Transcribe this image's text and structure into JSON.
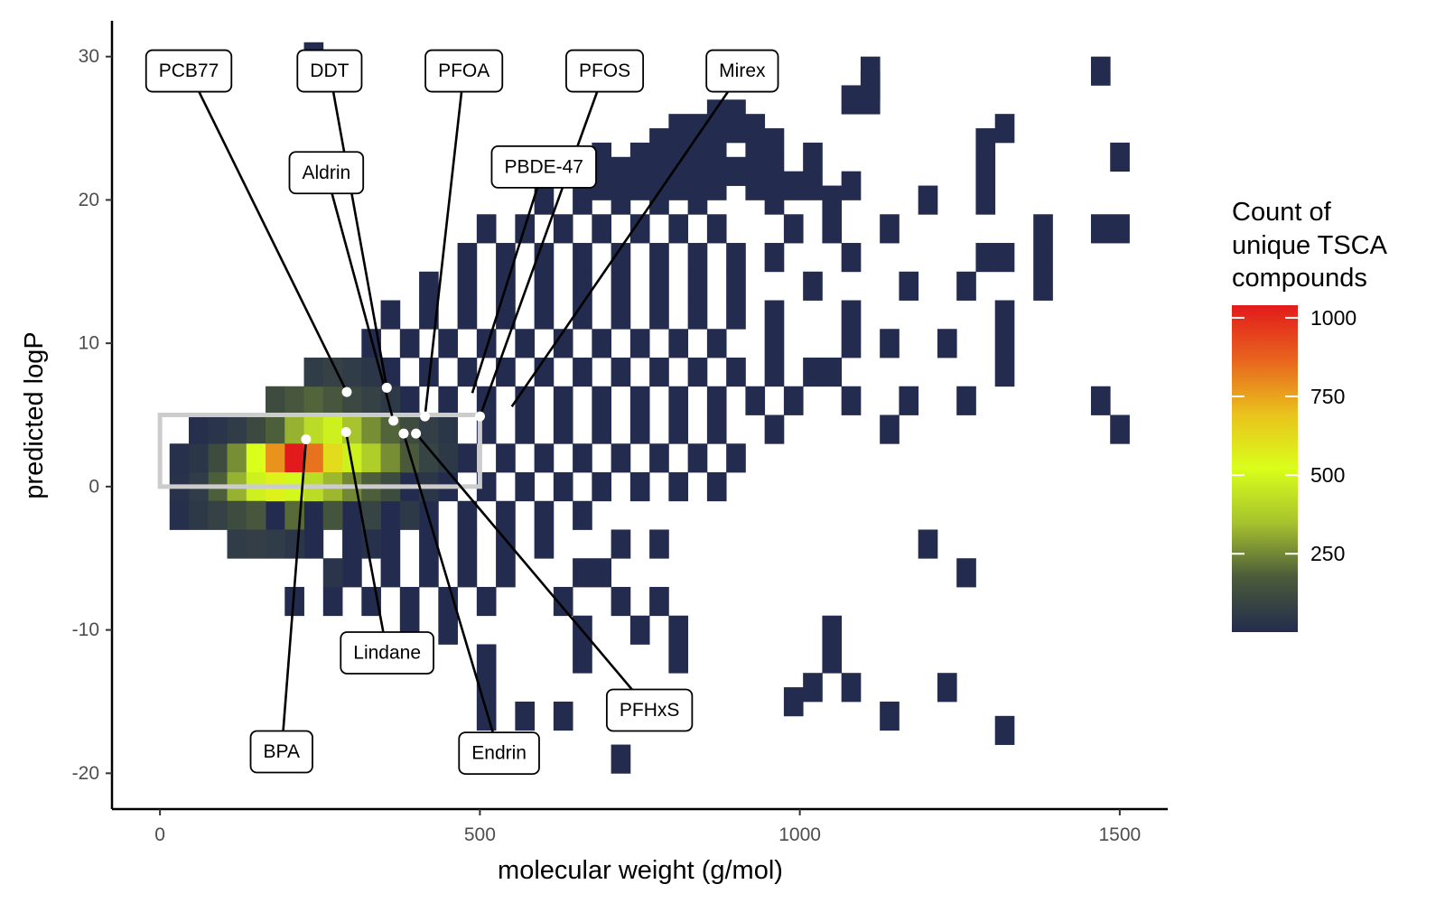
{
  "chart_data": {
    "type": "heatmap",
    "title": "",
    "xlabel": "molecular weight (g/mol)",
    "ylabel": "predicted logP",
    "xlim": [
      -75,
      1575
    ],
    "ylim": [
      -22.5,
      32.5
    ],
    "x_ticks": [
      0,
      500,
      1000,
      1500
    ],
    "x_tick_labels": [
      "0",
      "500",
      "1000",
      "1500"
    ],
    "y_ticks": [
      -20,
      -10,
      0,
      10,
      20,
      30
    ],
    "y_tick_labels": [
      "-20",
      "-10",
      "0",
      "10",
      "20",
      "30"
    ],
    "grid": false,
    "bin_width": {
      "x": 30,
      "y": 2
    },
    "legend": {
      "title_lines": [
        "Count of",
        "unique TSCA",
        "compounds"
      ],
      "ticks": [
        250,
        500,
        750,
        1000
      ],
      "tick_labels": [
        "250",
        "500",
        "750",
        "1000"
      ],
      "range": [
        1,
        1040
      ],
      "placement": "right"
    },
    "colors": {
      "scale": [
        "#232c4e",
        "#4a5a3a",
        "#a6c22e",
        "#d9ff1a",
        "#eac21d",
        "#e8641e",
        "#e31a1c"
      ],
      "highlight_box": "#cccccc",
      "point": "#ffffff"
    },
    "highlight_region": {
      "x": [
        0,
        500
      ],
      "y": [
        0,
        5
      ]
    },
    "bins": [
      [
        240,
        30,
        1
      ],
      [
        1110,
        29,
        1
      ],
      [
        1470,
        29,
        1
      ],
      [
        1110,
        28,
        1
      ],
      [
        1080,
        27,
        1
      ],
      [
        1110,
        27,
        1
      ],
      [
        870,
        26,
        1
      ],
      [
        900,
        26,
        1
      ],
      [
        900,
        25,
        1
      ],
      [
        1320,
        25,
        1
      ],
      [
        840,
        25,
        1
      ],
      [
        810,
        25,
        1
      ],
      [
        870,
        25,
        1
      ],
      [
        930,
        25,
        1
      ],
      [
        780,
        24,
        1
      ],
      [
        840,
        24,
        1
      ],
      [
        1290,
        24,
        1
      ],
      [
        960,
        24,
        1
      ],
      [
        690,
        23,
        1
      ],
      [
        750,
        23,
        1
      ],
      [
        810,
        23,
        1
      ],
      [
        870,
        23,
        1
      ],
      [
        1020,
        23,
        1
      ],
      [
        930,
        23,
        1
      ],
      [
        1500,
        23,
        1
      ],
      [
        720,
        22,
        1
      ],
      [
        780,
        22,
        1
      ],
      [
        900,
        22,
        1
      ],
      [
        960,
        22,
        1
      ],
      [
        1290,
        22,
        1
      ],
      [
        660,
        22,
        1
      ],
      [
        840,
        22,
        1
      ],
      [
        690,
        21,
        1
      ],
      [
        750,
        21,
        1
      ],
      [
        810,
        21,
        1
      ],
      [
        870,
        21,
        1
      ],
      [
        930,
        21,
        1
      ],
      [
        1020,
        21,
        1
      ],
      [
        1080,
        21,
        1
      ],
      [
        990,
        21,
        1
      ],
      [
        660,
        20,
        1
      ],
      [
        720,
        20,
        1
      ],
      [
        780,
        20,
        1
      ],
      [
        840,
        20,
        1
      ],
      [
        960,
        20,
        1
      ],
      [
        1050,
        20,
        1
      ],
      [
        1200,
        20,
        1
      ],
      [
        1290,
        20,
        1
      ],
      [
        600,
        20,
        1
      ],
      [
        510,
        18,
        1
      ],
      [
        570,
        18,
        1
      ],
      [
        630,
        18,
        1
      ],
      [
        690,
        18,
        1
      ],
      [
        750,
        18,
        1
      ],
      [
        810,
        18,
        1
      ],
      [
        870,
        18,
        1
      ],
      [
        990,
        18,
        1
      ],
      [
        1050,
        18,
        1
      ],
      [
        1140,
        18,
        1
      ],
      [
        1380,
        18,
        1
      ],
      [
        1470,
        18,
        1
      ],
      [
        1500,
        18,
        1
      ],
      [
        480,
        16,
        1
      ],
      [
        540,
        16,
        1
      ],
      [
        600,
        16,
        1
      ],
      [
        660,
        16,
        1
      ],
      [
        720,
        16,
        1
      ],
      [
        780,
        16,
        1
      ],
      [
        840,
        16,
        1
      ],
      [
        900,
        16,
        1
      ],
      [
        960,
        16,
        1
      ],
      [
        1080,
        16,
        1
      ],
      [
        1290,
        16,
        1
      ],
      [
        1320,
        16,
        1
      ],
      [
        1380,
        16,
        1
      ],
      [
        420,
        14,
        1
      ],
      [
        480,
        14,
        1
      ],
      [
        540,
        14,
        1
      ],
      [
        600,
        14,
        1
      ],
      [
        660,
        14,
        1
      ],
      [
        720,
        14,
        1
      ],
      [
        780,
        14,
        1
      ],
      [
        840,
        14,
        1
      ],
      [
        900,
        14,
        1
      ],
      [
        1020,
        14,
        1
      ],
      [
        1170,
        14,
        1
      ],
      [
        1260,
        14,
        1
      ],
      [
        1380,
        14,
        1
      ],
      [
        360,
        12,
        1
      ],
      [
        420,
        12,
        1
      ],
      [
        480,
        12,
        1
      ],
      [
        540,
        12,
        1
      ],
      [
        600,
        12,
        1
      ],
      [
        660,
        12,
        1
      ],
      [
        720,
        12,
        1
      ],
      [
        780,
        12,
        1
      ],
      [
        840,
        12,
        1
      ],
      [
        900,
        12,
        1
      ],
      [
        960,
        12,
        1
      ],
      [
        1080,
        12,
        1
      ],
      [
        1320,
        12,
        1
      ],
      [
        330,
        10,
        1
      ],
      [
        390,
        10,
        1
      ],
      [
        450,
        10,
        1
      ],
      [
        510,
        10,
        1
      ],
      [
        570,
        10,
        1
      ],
      [
        630,
        10,
        1
      ],
      [
        690,
        10,
        1
      ],
      [
        750,
        10,
        1
      ],
      [
        810,
        10,
        1
      ],
      [
        870,
        10,
        1
      ],
      [
        960,
        10,
        1
      ],
      [
        1080,
        10,
        1
      ],
      [
        1140,
        10,
        1
      ],
      [
        1230,
        10,
        1
      ],
      [
        1320,
        10,
        1
      ],
      [
        300,
        8,
        1
      ],
      [
        360,
        8,
        1
      ],
      [
        420,
        8,
        1
      ],
      [
        480,
        8,
        1
      ],
      [
        540,
        8,
        1
      ],
      [
        600,
        8,
        1
      ],
      [
        660,
        8,
        1
      ],
      [
        720,
        8,
        1
      ],
      [
        780,
        8,
        1
      ],
      [
        840,
        8,
        1
      ],
      [
        900,
        8,
        1
      ],
      [
        960,
        8,
        1
      ],
      [
        1020,
        8,
        1
      ],
      [
        1050,
        8,
        1
      ],
      [
        1320,
        8,
        1
      ],
      [
        270,
        6,
        1
      ],
      [
        330,
        6,
        1
      ],
      [
        390,
        6,
        1
      ],
      [
        450,
        6,
        1
      ],
      [
        510,
        6,
        1
      ],
      [
        570,
        6,
        1
      ],
      [
        630,
        6,
        1
      ],
      [
        690,
        6,
        1
      ],
      [
        750,
        6,
        1
      ],
      [
        810,
        6,
        1
      ],
      [
        870,
        6,
        1
      ],
      [
        930,
        6,
        1
      ],
      [
        990,
        6,
        1
      ],
      [
        1080,
        6,
        1
      ],
      [
        1170,
        6,
        1
      ],
      [
        1470,
        6,
        1
      ],
      [
        1260,
        6,
        1
      ],
      [
        210,
        4,
        1
      ],
      [
        270,
        4,
        1
      ],
      [
        330,
        4,
        1
      ],
      [
        390,
        4,
        1
      ],
      [
        450,
        4,
        1
      ],
      [
        510,
        4,
        1
      ],
      [
        570,
        4,
        1
      ],
      [
        630,
        4,
        1
      ],
      [
        690,
        4,
        1
      ],
      [
        750,
        4,
        1
      ],
      [
        810,
        4,
        1
      ],
      [
        870,
        4,
        1
      ],
      [
        960,
        4,
        1
      ],
      [
        1500,
        4,
        1
      ],
      [
        1140,
        4,
        1
      ],
      [
        180,
        2,
        1
      ],
      [
        240,
        2,
        1
      ],
      [
        300,
        2,
        1
      ],
      [
        360,
        2,
        1
      ],
      [
        420,
        2,
        1
      ],
      [
        480,
        2,
        1
      ],
      [
        540,
        2,
        1
      ],
      [
        600,
        2,
        1
      ],
      [
        660,
        2,
        1
      ],
      [
        720,
        2,
        1
      ],
      [
        780,
        2,
        1
      ],
      [
        840,
        2,
        1
      ],
      [
        900,
        2,
        1
      ],
      [
        150,
        0,
        1
      ],
      [
        210,
        0,
        1
      ],
      [
        270,
        0,
        1
      ],
      [
        330,
        0,
        1
      ],
      [
        390,
        0,
        1
      ],
      [
        450,
        0,
        1
      ],
      [
        510,
        0,
        1
      ],
      [
        570,
        0,
        1
      ],
      [
        630,
        0,
        1
      ],
      [
        690,
        0,
        1
      ],
      [
        750,
        0,
        1
      ],
      [
        810,
        0,
        1
      ],
      [
        870,
        0,
        1
      ],
      [
        180,
        -2,
        1
      ],
      [
        240,
        -2,
        1
      ],
      [
        300,
        -2,
        1
      ],
      [
        360,
        -2,
        1
      ],
      [
        420,
        -2,
        1
      ],
      [
        480,
        -2,
        1
      ],
      [
        540,
        -2,
        1
      ],
      [
        600,
        -2,
        1
      ],
      [
        660,
        -2,
        1
      ],
      [
        240,
        -4,
        1
      ],
      [
        300,
        -4,
        1
      ],
      [
        360,
        -4,
        1
      ],
      [
        420,
        -4,
        1
      ],
      [
        480,
        -4,
        1
      ],
      [
        540,
        -4,
        1
      ],
      [
        600,
        -4,
        1
      ],
      [
        720,
        -4,
        1
      ],
      [
        780,
        -4,
        1
      ],
      [
        1200,
        -4,
        1
      ],
      [
        300,
        -6,
        1
      ],
      [
        360,
        -6,
        1
      ],
      [
        420,
        -6,
        1
      ],
      [
        480,
        -6,
        1
      ],
      [
        540,
        -6,
        1
      ],
      [
        660,
        -6,
        1
      ],
      [
        690,
        -6,
        1
      ],
      [
        1260,
        -6,
        1
      ],
      [
        210,
        -8,
        1
      ],
      [
        270,
        -8,
        1
      ],
      [
        330,
        -8,
        1
      ],
      [
        390,
        -8,
        1
      ],
      [
        450,
        -8,
        1
      ],
      [
        510,
        -8,
        1
      ],
      [
        630,
        -8,
        1
      ],
      [
        720,
        -8,
        1
      ],
      [
        780,
        -8,
        1
      ],
      [
        390,
        -10,
        1
      ],
      [
        450,
        -10,
        1
      ],
      [
        660,
        -10,
        1
      ],
      [
        750,
        -10,
        1
      ],
      [
        810,
        -10,
        1
      ],
      [
        1050,
        -10,
        1
      ],
      [
        510,
        -12,
        1
      ],
      [
        660,
        -12,
        1
      ],
      [
        810,
        -12,
        1
      ],
      [
        1050,
        -12,
        1
      ],
      [
        1020,
        -14,
        1
      ],
      [
        1080,
        -14,
        1
      ],
      [
        1230,
        -14,
        1
      ],
      [
        510,
        -14,
        1
      ],
      [
        990,
        -15,
        1
      ],
      [
        510,
        -16,
        1
      ],
      [
        570,
        -16,
        1
      ],
      [
        630,
        -16,
        1
      ],
      [
        1140,
        -16,
        1
      ],
      [
        1320,
        -17,
        1
      ],
      [
        720,
        -19,
        1
      ],
      [
        120,
        4,
        60
      ],
      [
        150,
        4,
        110
      ],
      [
        180,
        4,
        180
      ],
      [
        210,
        4,
        320
      ],
      [
        240,
        4,
        420
      ],
      [
        270,
        4,
        480
      ],
      [
        300,
        4,
        350
      ],
      [
        330,
        4,
        260
      ],
      [
        360,
        4,
        190
      ],
      [
        390,
        4,
        120
      ],
      [
        420,
        4,
        70
      ],
      [
        450,
        4,
        40
      ],
      [
        90,
        2,
        120
      ],
      [
        120,
        2,
        260
      ],
      [
        150,
        2,
        520
      ],
      [
        180,
        2,
        780
      ],
      [
        210,
        2,
        1040
      ],
      [
        240,
        2,
        840
      ],
      [
        270,
        2,
        620
      ],
      [
        300,
        2,
        480
      ],
      [
        330,
        2,
        380
      ],
      [
        360,
        2,
        260
      ],
      [
        390,
        2,
        170
      ],
      [
        420,
        2,
        90
      ],
      [
        450,
        2,
        50
      ],
      [
        90,
        0,
        180
      ],
      [
        120,
        0,
        320
      ],
      [
        150,
        0,
        480
      ],
      [
        180,
        0,
        560
      ],
      [
        210,
        0,
        500
      ],
      [
        240,
        0,
        420
      ],
      [
        270,
        0,
        330
      ],
      [
        300,
        0,
        250
      ],
      [
        330,
        0,
        180
      ],
      [
        360,
        0,
        120
      ],
      [
        420,
        0,
        40
      ],
      [
        60,
        0,
        60
      ],
      [
        60,
        2,
        40
      ],
      [
        120,
        -2,
        120
      ],
      [
        150,
        -2,
        160
      ],
      [
        210,
        -2,
        200
      ],
      [
        270,
        -2,
        150
      ],
      [
        330,
        -2,
        90
      ],
      [
        390,
        -2,
        50
      ],
      [
        180,
        6,
        120
      ],
      [
        210,
        6,
        160
      ],
      [
        240,
        6,
        190
      ],
      [
        270,
        6,
        160
      ],
      [
        300,
        6,
        110
      ],
      [
        330,
        6,
        80
      ],
      [
        360,
        6,
        50
      ],
      [
        240,
        8,
        60
      ],
      [
        270,
        8,
        80
      ],
      [
        300,
        8,
        60
      ],
      [
        330,
        8,
        40
      ],
      [
        30,
        0,
        25
      ],
      [
        30,
        2,
        20
      ],
      [
        60,
        4,
        15
      ],
      [
        90,
        4,
        30
      ],
      [
        30,
        -2,
        15
      ],
      [
        60,
        -2,
        50
      ],
      [
        90,
        -2,
        80
      ],
      [
        120,
        -4,
        60
      ],
      [
        150,
        -4,
        70
      ],
      [
        180,
        -4,
        60
      ],
      [
        210,
        -4,
        40
      ],
      [
        270,
        -6,
        30
      ],
      [
        330,
        -4,
        20
      ]
    ],
    "points": [
      {
        "label": "PCB77",
        "x": 291.98,
        "y": 6.6,
        "label_x": 45,
        "label_y": 29
      },
      {
        "label": "DDT",
        "x": 354.49,
        "y": 6.9,
        "label_x": 265,
        "label_y": 29
      },
      {
        "label": "PFOA",
        "x": 414.07,
        "y": 4.9,
        "label_x": 475,
        "label_y": 29
      },
      {
        "label": "PFOS",
        "x": 500.13,
        "y": 4.9,
        "label_x": 695,
        "label_y": 29
      },
      {
        "label": "Mirex",
        "x": 545.54,
        "y": 5.3,
        "label_x": 910,
        "label_y": 29
      },
      {
        "label": "PBDE-47",
        "x": 485.79,
        "y": 6.2,
        "label_x": 600,
        "label_y": 22.3
      },
      {
        "label": "Aldrin",
        "x": 364.91,
        "y": 4.6,
        "label_x": 260,
        "label_y": 21.9
      },
      {
        "label": "BPA",
        "x": 228.29,
        "y": 3.3,
        "label_x": 190,
        "label_y": -18.5
      },
      {
        "label": "Lindane",
        "x": 290.83,
        "y": 3.8,
        "label_x": 355,
        "label_y": -11.6
      },
      {
        "label": "Endrin",
        "x": 380.91,
        "y": 3.7,
        "label_x": 530,
        "label_y": -18.6
      },
      {
        "label": "PFHxS",
        "x": 400.1,
        "y": 3.7,
        "label_x": 765,
        "label_y": -15.6
      }
    ]
  }
}
